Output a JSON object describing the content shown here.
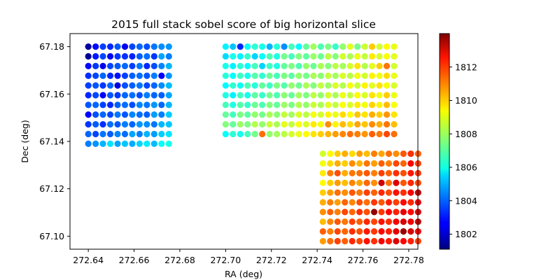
{
  "chart_data": {
    "type": "scatter",
    "title": "2015 full stack sobel score of big horizontal slice",
    "xlabel": "RA (deg)",
    "ylabel": "Dec (deg)",
    "xlim": [
      272.632,
      272.784
    ],
    "ylim": [
      67.0945,
      67.1855
    ],
    "xticks": [
      "272.64",
      "272.66",
      "272.68",
      "272.70",
      "272.72",
      "272.74",
      "272.76",
      "272.78"
    ],
    "yticks": [
      "67.10",
      "67.12",
      "67.14",
      "67.16",
      "67.18"
    ],
    "colorbar": {
      "colormap": "jet",
      "range": [
        1801.1,
        1814.0
      ],
      "ticks": [
        "1802",
        "1804",
        "1806",
        "1808",
        "1810",
        "1812"
      ]
    },
    "grid": false,
    "patches": [
      {
        "name": "upper-left block",
        "x_start": 272.64,
        "x_step": 0.0032,
        "y_top": 67.18,
        "y_step": 0.0041,
        "values": [
          [
            1801.5,
            1802.8,
            1803.5,
            1803.2,
            1803.8,
            1802.5,
            1803.6,
            1804.0,
            1803.7,
            1804.2,
            1804.5,
            1804.6
          ],
          [
            1801.4,
            1803.0,
            1803.6,
            1802.6,
            1803.4,
            1803.3,
            1803.1,
            1803.9,
            1804.1,
            1803.4,
            1804.8,
            1804.3
          ],
          [
            1802.8,
            1803.4,
            1802.5,
            1803.6,
            1803.8,
            1804.0,
            1803.5,
            1804.2,
            1803.2,
            1803.7,
            1804.4,
            1805.0
          ],
          [
            1803.3,
            1803.6,
            1804.0,
            1803.2,
            1802.9,
            1803.5,
            1803.9,
            1804.1,
            1803.8,
            1804.3,
            1802.7,
            1804.6
          ],
          [
            1803.5,
            1803.8,
            1803.4,
            1804.0,
            1802.3,
            1803.7,
            1803.9,
            1804.2,
            1803.6,
            1804.0,
            1804.5,
            1805.1
          ],
          [
            1803.2,
            1803.6,
            1802.6,
            1803.8,
            1803.4,
            1804.0,
            1804.1,
            1803.7,
            1804.3,
            1804.0,
            1803.9,
            1804.8
          ],
          [
            1803.8,
            1804.0,
            1803.5,
            1803.2,
            1803.9,
            1804.1,
            1803.7,
            1804.4,
            1804.2,
            1804.6,
            1804.0,
            1805.0
          ],
          [
            1802.7,
            1803.7,
            1804.0,
            1803.6,
            1804.2,
            1803.8,
            1804.4,
            1804.1,
            1803.9,
            1804.7,
            1804.3,
            1805.3
          ],
          [
            1803.4,
            1803.9,
            1803.3,
            1804.1,
            1803.8,
            1804.3,
            1804.0,
            1804.6,
            1804.5,
            1804.2,
            1805.0,
            1805.2
          ],
          [
            1804.0,
            1803.6,
            1804.2,
            1803.9,
            1804.4,
            1804.1,
            1804.8,
            1804.3,
            1805.0,
            1804.7,
            1805.3,
            1805.6
          ],
          [
            1804.3,
            1804.6,
            1805.0,
            1805.6,
            1804.8,
            1805.2,
            1804.9,
            1805.4,
            1805.7,
            1805.1,
            1806.0,
            1806.2
          ]
        ]
      },
      {
        "name": "right top block",
        "x_start": 272.7,
        "x_step": 0.0032,
        "y_top": 67.18,
        "y_step": 0.0041,
        "values": [
          [
            1805.8,
            1805.2,
            1803.2,
            1806.0,
            1806.5,
            1806.2,
            1805.0,
            1806.4,
            1804.5,
            1806.8,
            1805.9,
            1807.2,
            1808.0,
            1806.9,
            1807.5,
            1806.6,
            1807.8,
            1808.8,
            1807.4,
            1808.5,
            1809.8,
            1808.6,
            1809.2,
            1808.9
          ],
          [
            1805.5,
            1806.2,
            1805.8,
            1806.6,
            1805.4,
            1806.0,
            1806.9,
            1806.3,
            1807.4,
            1806.8,
            1807.6,
            1807.1,
            1807.9,
            1807.3,
            1808.3,
            1807.6,
            1808.6,
            1808.1,
            1808.9,
            1808.4,
            1809.4,
            1808.7,
            1809.1,
            1808.8
          ],
          [
            1806.2,
            1805.8,
            1806.5,
            1806.0,
            1806.8,
            1805.4,
            1806.7,
            1806.3,
            1807.2,
            1807.5,
            1806.9,
            1807.8,
            1807.3,
            1808.1,
            1807.6,
            1808.3,
            1808.0,
            1808.6,
            1809.5,
            1808.2,
            1808.8,
            1809.8,
            1810.9,
            1808.6
          ],
          [
            1806.4,
            1806.0,
            1806.7,
            1806.2,
            1807.0,
            1806.5,
            1807.3,
            1806.8,
            1807.5,
            1807.1,
            1807.8,
            1807.4,
            1808.1,
            1807.7,
            1808.4,
            1808.0,
            1808.7,
            1808.3,
            1809.0,
            1808.6,
            1809.3,
            1809.0,
            1809.6,
            1808.9
          ],
          [
            1805.9,
            1806.5,
            1806.1,
            1806.9,
            1806.4,
            1807.2,
            1806.7,
            1807.5,
            1807.0,
            1807.8,
            1807.3,
            1808.1,
            1807.6,
            1808.4,
            1807.9,
            1808.7,
            1808.2,
            1809.0,
            1808.5,
            1809.3,
            1808.8,
            1809.5,
            1809.1,
            1808.7
          ],
          [
            1806.3,
            1805.8,
            1806.7,
            1806.2,
            1807.1,
            1806.6,
            1807.4,
            1806.9,
            1807.7,
            1807.2,
            1808.0,
            1807.5,
            1808.3,
            1807.8,
            1808.6,
            1808.1,
            1808.9,
            1808.4,
            1809.2,
            1808.7,
            1809.5,
            1809.0,
            1809.8,
            1808.9
          ],
          [
            1806.8,
            1806.3,
            1807.0,
            1806.6,
            1807.3,
            1806.9,
            1807.6,
            1807.2,
            1807.9,
            1807.5,
            1808.2,
            1807.8,
            1808.5,
            1808.1,
            1808.8,
            1808.4,
            1809.1,
            1808.7,
            1809.4,
            1809.0,
            1809.7,
            1809.3,
            1810.0,
            1809.1
          ],
          [
            1807.2,
            1806.8,
            1807.5,
            1807.1,
            1807.8,
            1807.4,
            1808.1,
            1807.7,
            1808.4,
            1808.0,
            1808.7,
            1808.3,
            1809.0,
            1808.6,
            1809.3,
            1808.9,
            1809.6,
            1809.2,
            1809.9,
            1809.5,
            1810.2,
            1809.8,
            1810.5,
            1809.5
          ],
          [
            1807.6,
            1807.2,
            1807.9,
            1807.5,
            1808.2,
            1807.8,
            1808.5,
            1808.1,
            1808.8,
            1808.4,
            1809.1,
            1808.7,
            1809.4,
            1809.0,
            1810.6,
            1809.3,
            1810.0,
            1809.6,
            1810.3,
            1809.9,
            1810.6,
            1810.2,
            1810.9,
            1810.0
          ],
          [
            1806.0,
            1806.5,
            1806.2,
            1806.8,
            1807.4,
            1811.0,
            1807.8,
            1808.0,
            1808.3,
            1808.6,
            1808.9,
            1809.2,
            1809.5,
            1809.8,
            1810.1,
            1810.4,
            1810.7,
            1811.0,
            1810.8,
            1810.5,
            1811.2,
            1810.9,
            1811.5,
            1811.0
          ]
        ]
      },
      {
        "name": "lower-right block",
        "x_start": 272.7425,
        "x_step": 0.0032,
        "y_top": 67.1348,
        "y_step": 0.0041,
        "values": [
          [
            1808.6,
            1809.2,
            1809.8,
            1810.2,
            1809.6,
            1810.4,
            1810.0,
            1810.8,
            1810.3,
            1811.0,
            1810.6,
            1811.3,
            1811.8,
            1811.2
          ],
          [
            1809.0,
            1809.6,
            1810.2,
            1809.8,
            1810.6,
            1810.1,
            1810.9,
            1810.4,
            1811.2,
            1810.8,
            1811.5,
            1811.1,
            1812.4,
            1811.6
          ],
          [
            1809.4,
            1810.8,
            1811.4,
            1810.2,
            1810.9,
            1811.0,
            1811.3,
            1810.8,
            1811.6,
            1811.2,
            1811.8,
            1811.4,
            1812.1,
            1811.7
          ],
          [
            1809.2,
            1809.8,
            1810.4,
            1810.0,
            1810.7,
            1810.3,
            1811.1,
            1810.6,
            1813.0,
            1811.0,
            1812.8,
            1811.3,
            1811.9,
            1811.5
          ],
          [
            1809.8,
            1810.4,
            1811.0,
            1810.6,
            1811.3,
            1810.9,
            1811.6,
            1811.2,
            1811.9,
            1811.5,
            1812.2,
            1811.8,
            1812.5,
            1813.2
          ],
          [
            1810.2,
            1810.8,
            1810.4,
            1811.1,
            1810.7,
            1811.4,
            1811.0,
            1811.7,
            1811.3,
            1812.0,
            1811.6,
            1812.3,
            1811.9,
            1812.6
          ],
          [
            1810.6,
            1811.2,
            1810.8,
            1811.5,
            1811.1,
            1811.8,
            1811.4,
            1813.8,
            1811.7,
            1812.4,
            1812.0,
            1812.7,
            1812.3,
            1812.9
          ],
          [
            1810.0,
            1810.7,
            1811.3,
            1810.9,
            1811.6,
            1811.2,
            1811.9,
            1811.5,
            1812.2,
            1811.8,
            1812.5,
            1812.9,
            1812.6,
            1813.1
          ],
          [
            1811.2,
            1810.8,
            1811.5,
            1811.1,
            1811.8,
            1811.4,
            1812.1,
            1811.7,
            1812.4,
            1812.0,
            1812.7,
            1813.7,
            1812.9,
            1812.5
          ],
          [
            1810.4,
            1811.0,
            1811.6,
            1811.2,
            1811.9,
            1811.5,
            1812.2,
            1811.8,
            1812.5,
            1812.1,
            1812.8,
            1812.4,
            1812.0,
            1811.6
          ]
        ]
      }
    ]
  }
}
